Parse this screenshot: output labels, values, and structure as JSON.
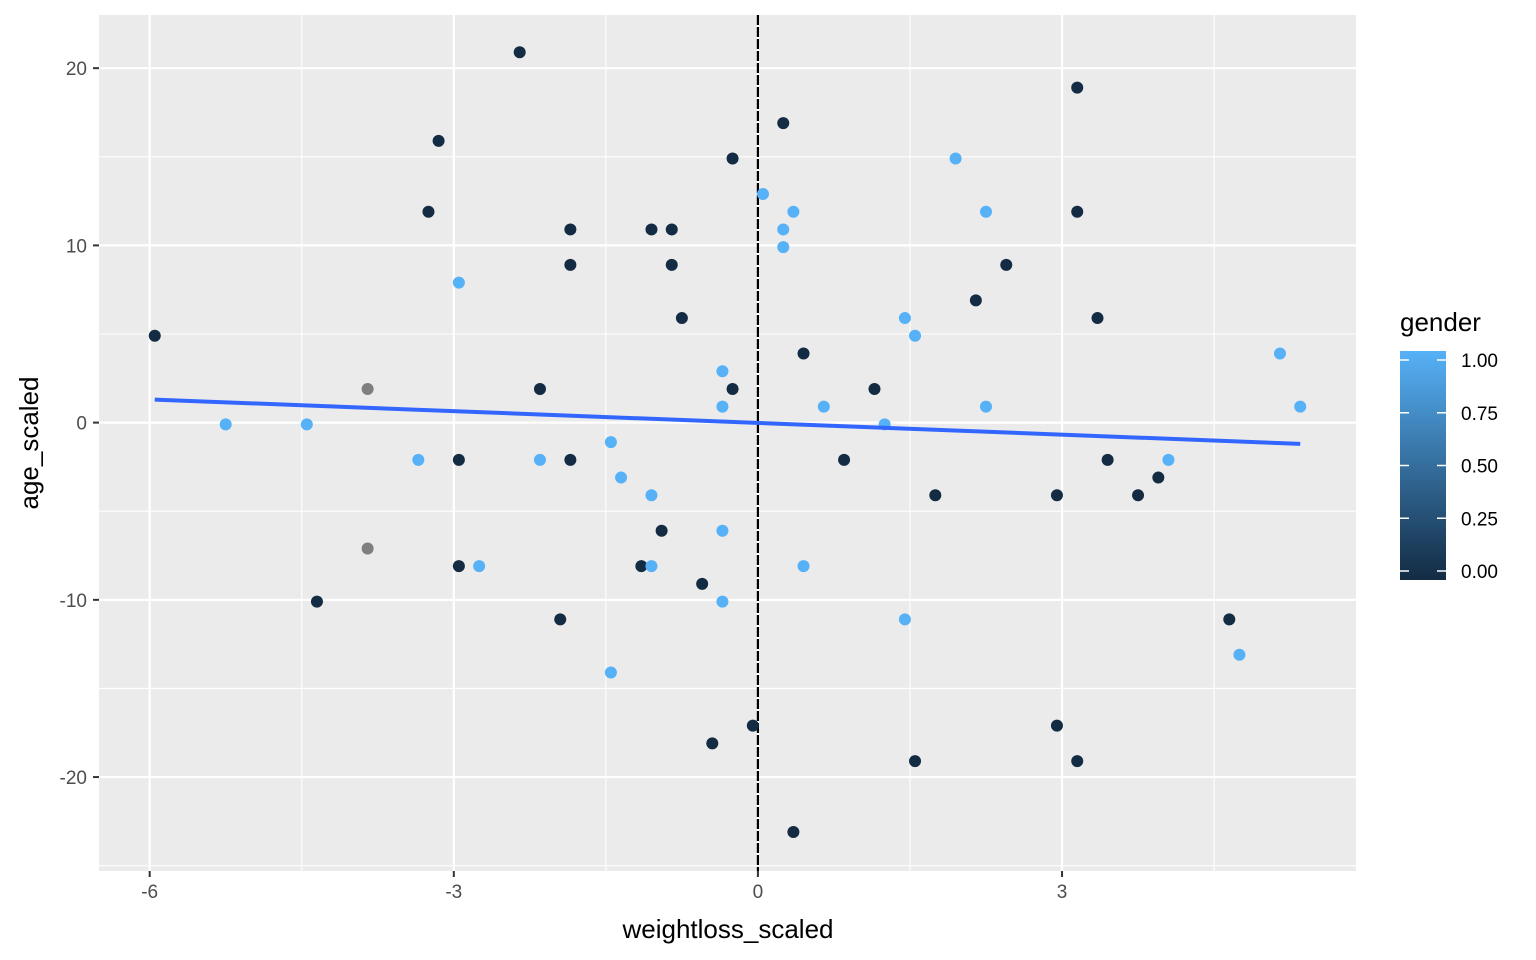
{
  "chart_data": {
    "type": "scatter",
    "xlabel": "weightloss_scaled",
    "ylabel": "age_scaled",
    "xlim": [
      -6.5,
      5.9
    ],
    "ylim": [
      -25.3,
      23.0
    ],
    "x_ticks": [
      -6,
      -3,
      0,
      3
    ],
    "x_tick_labels": [
      "-6",
      "-3",
      "0",
      "3"
    ],
    "y_ticks": [
      -20,
      -10,
      0,
      10,
      20
    ],
    "y_tick_labels": [
      "-20",
      "-10",
      "0",
      "10",
      "20"
    ],
    "grid": true,
    "panel_background": "#ebebeb",
    "vline": {
      "x": 0,
      "color": "#000000",
      "style": "dashed"
    },
    "trend_line": {
      "x": [
        -5.95,
        5.35
      ],
      "y": [
        1.3,
        -1.2
      ],
      "color": "#3366ff"
    },
    "legend": {
      "title": "gender",
      "type": "colorbar",
      "placement": "right",
      "breaks": [
        1.0,
        0.75,
        0.5,
        0.25,
        0.0
      ],
      "labels": [
        "1.00",
        "0.75",
        "0.50",
        "0.25",
        "0.00"
      ],
      "low_color": "#132b43",
      "high_color": "#56b1f7"
    },
    "na_color": "#7f7f7f",
    "series": [
      {
        "x": -5.95,
        "y": 4.9,
        "gender": 0
      },
      {
        "x": -5.25,
        "y": -0.1,
        "gender": 1
      },
      {
        "x": -4.45,
        "y": -0.1,
        "gender": 1
      },
      {
        "x": -4.35,
        "y": -10.1,
        "gender": 0
      },
      {
        "x": -3.85,
        "y": 1.9,
        "gender": null
      },
      {
        "x": -3.85,
        "y": -7.1,
        "gender": null
      },
      {
        "x": -3.35,
        "y": -2.1,
        "gender": 1
      },
      {
        "x": -3.25,
        "y": 11.9,
        "gender": 0
      },
      {
        "x": -3.15,
        "y": 15.9,
        "gender": 0
      },
      {
        "x": -2.95,
        "y": 7.9,
        "gender": 1
      },
      {
        "x": -2.95,
        "y": -2.1,
        "gender": 0
      },
      {
        "x": -2.95,
        "y": -8.1,
        "gender": 0
      },
      {
        "x": -2.75,
        "y": -8.1,
        "gender": 1
      },
      {
        "x": -2.35,
        "y": 20.9,
        "gender": 0
      },
      {
        "x": -2.15,
        "y": 1.9,
        "gender": 0
      },
      {
        "x": -2.15,
        "y": -2.1,
        "gender": 1
      },
      {
        "x": -1.95,
        "y": -11.1,
        "gender": 0
      },
      {
        "x": -1.85,
        "y": 10.9,
        "gender": 0
      },
      {
        "x": -1.85,
        "y": 8.9,
        "gender": 0
      },
      {
        "x": -1.85,
        "y": -2.1,
        "gender": 0
      },
      {
        "x": -1.45,
        "y": -1.1,
        "gender": 1
      },
      {
        "x": -1.45,
        "y": -14.1,
        "gender": 1
      },
      {
        "x": -1.35,
        "y": -3.1,
        "gender": 1
      },
      {
        "x": -1.15,
        "y": -8.1,
        "gender": 0
      },
      {
        "x": -1.05,
        "y": 10.9,
        "gender": 0
      },
      {
        "x": -1.05,
        "y": -4.1,
        "gender": 1
      },
      {
        "x": -1.05,
        "y": -8.1,
        "gender": 1
      },
      {
        "x": -0.95,
        "y": -6.1,
        "gender": 0
      },
      {
        "x": -0.85,
        "y": 10.9,
        "gender": 0
      },
      {
        "x": -0.85,
        "y": 8.9,
        "gender": 0
      },
      {
        "x": -0.75,
        "y": 5.9,
        "gender": 0
      },
      {
        "x": -0.55,
        "y": -9.1,
        "gender": 0
      },
      {
        "x": -0.45,
        "y": -18.1,
        "gender": 0
      },
      {
        "x": -0.35,
        "y": 2.9,
        "gender": 1
      },
      {
        "x": -0.35,
        "y": 0.9,
        "gender": 1
      },
      {
        "x": -0.35,
        "y": -6.1,
        "gender": 1
      },
      {
        "x": -0.35,
        "y": -10.1,
        "gender": 1
      },
      {
        "x": -0.25,
        "y": 14.9,
        "gender": 0
      },
      {
        "x": -0.25,
        "y": 1.9,
        "gender": 0
      },
      {
        "x": -0.05,
        "y": -17.1,
        "gender": 0
      },
      {
        "x": 0.05,
        "y": 12.9,
        "gender": 1
      },
      {
        "x": 0.25,
        "y": 16.9,
        "gender": 0
      },
      {
        "x": 0.25,
        "y": 10.9,
        "gender": 1
      },
      {
        "x": 0.25,
        "y": 9.9,
        "gender": 1
      },
      {
        "x": 0.35,
        "y": 11.9,
        "gender": 1
      },
      {
        "x": 0.35,
        "y": -23.1,
        "gender": 0
      },
      {
        "x": 0.45,
        "y": 3.9,
        "gender": 0
      },
      {
        "x": 0.45,
        "y": -8.1,
        "gender": 1
      },
      {
        "x": 0.65,
        "y": 0.9,
        "gender": 1
      },
      {
        "x": 0.85,
        "y": -2.1,
        "gender": 0
      },
      {
        "x": 1.15,
        "y": 1.9,
        "gender": 0
      },
      {
        "x": 1.25,
        "y": -0.1,
        "gender": 1
      },
      {
        "x": 1.45,
        "y": 5.9,
        "gender": 1
      },
      {
        "x": 1.45,
        "y": -11.1,
        "gender": 1
      },
      {
        "x": 1.55,
        "y": 4.9,
        "gender": 1
      },
      {
        "x": 1.55,
        "y": -19.1,
        "gender": 0
      },
      {
        "x": 1.75,
        "y": -4.1,
        "gender": 0
      },
      {
        "x": 1.95,
        "y": 14.9,
        "gender": 1
      },
      {
        "x": 2.15,
        "y": 6.9,
        "gender": 0
      },
      {
        "x": 2.25,
        "y": 11.9,
        "gender": 1
      },
      {
        "x": 2.25,
        "y": 0.9,
        "gender": 1
      },
      {
        "x": 2.45,
        "y": 8.9,
        "gender": 0
      },
      {
        "x": 2.95,
        "y": -4.1,
        "gender": 0
      },
      {
        "x": 2.95,
        "y": -17.1,
        "gender": 0
      },
      {
        "x": 3.15,
        "y": 18.9,
        "gender": 0
      },
      {
        "x": 3.15,
        "y": 11.9,
        "gender": 0
      },
      {
        "x": 3.15,
        "y": -19.1,
        "gender": 0
      },
      {
        "x": 3.35,
        "y": 5.9,
        "gender": 0
      },
      {
        "x": 3.45,
        "y": -2.1,
        "gender": 0
      },
      {
        "x": 3.75,
        "y": -4.1,
        "gender": 0
      },
      {
        "x": 3.95,
        "y": -3.1,
        "gender": 0
      },
      {
        "x": 4.05,
        "y": -2.1,
        "gender": 1
      },
      {
        "x": 4.65,
        "y": -11.1,
        "gender": 0
      },
      {
        "x": 4.75,
        "y": -13.1,
        "gender": 1
      },
      {
        "x": 5.15,
        "y": 3.9,
        "gender": 1
      },
      {
        "x": 5.35,
        "y": 0.9,
        "gender": 1
      }
    ]
  }
}
